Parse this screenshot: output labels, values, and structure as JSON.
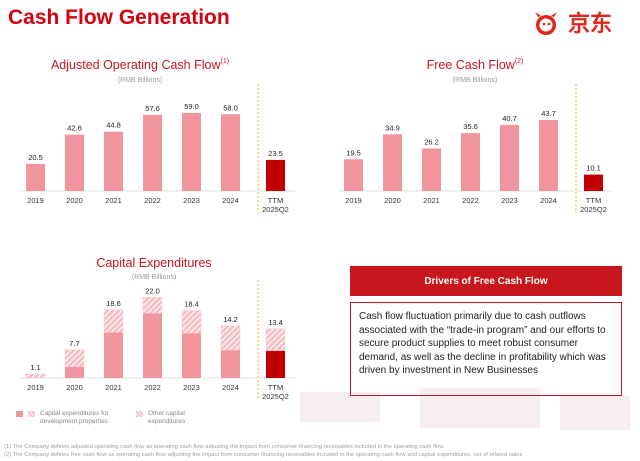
{
  "page": {
    "title": "Cash Flow Generation",
    "logo_text": "京东",
    "logo_icon": "jd-dog-mascot-icon",
    "unit_label": "(RMB Billions)",
    "colors": {
      "brand": "#c8161d",
      "bar_pink": "#f0959e",
      "bar_ttm": "#c00000",
      "divider": "#f2b51a"
    }
  },
  "chart_data": [
    {
      "type": "bar",
      "title": "Adjusted Operating Cash Flow",
      "footnote_marker": "(1)",
      "subtitle": "(RMB Billions)",
      "categories": [
        "2019",
        "2020",
        "2021",
        "2022",
        "2023",
        "2024",
        "TTM 2025Q2"
      ],
      "values": [
        20.5,
        42.6,
        44.8,
        57.6,
        59.0,
        58.0,
        23.5
      ],
      "value_labels": [
        "20.5",
        "42.6",
        "44.8",
        "57.6",
        "59.0",
        "58.0",
        "23.5"
      ],
      "highlight_last": true,
      "ylim": [
        0,
        65
      ]
    },
    {
      "type": "bar",
      "title": "Free Cash Flow",
      "footnote_marker": "(2)",
      "subtitle": "(RMB Billions)",
      "categories": [
        "2019",
        "2020",
        "2021",
        "2022",
        "2023",
        "2024",
        "TTM 2025Q2"
      ],
      "values": [
        19.5,
        34.9,
        26.2,
        35.6,
        40.7,
        43.7,
        10.1
      ],
      "value_labels": [
        "19.5",
        "34.9",
        "26.2",
        "35.6",
        "40.7",
        "43.7",
        "10.1"
      ],
      "highlight_last": true,
      "ylim": [
        0,
        48
      ]
    },
    {
      "type": "bar",
      "stacked": true,
      "title": "Capital Expenditures",
      "subtitle": "(RMB Billions)",
      "categories": [
        "2019",
        "2020",
        "2021",
        "2022",
        "2023",
        "2024",
        "TTM 2025Q2"
      ],
      "totals": [
        1.1,
        7.7,
        18.6,
        22.0,
        18.4,
        14.2,
        13.4
      ],
      "total_labels": [
        "1.1",
        "7.7",
        "18.6",
        "22.0",
        "18.4",
        "14.2",
        "13.4"
      ],
      "series": [
        {
          "name": "Capital expenditures for development properties",
          "values": [
            0.0,
            3.0,
            12.4,
            17.6,
            12.2,
            7.6,
            7.4
          ]
        },
        {
          "name": "Other capital expenditures",
          "values": [
            1.1,
            4.7,
            6.2,
            4.4,
            6.2,
            6.6,
            6.0
          ]
        }
      ],
      "legend": [
        "Capital expenditures for development properties",
        "Other capital expenditures"
      ],
      "ylim": [
        0,
        24
      ]
    }
  ],
  "drivers": {
    "heading": "Drivers of Free Cash Flow",
    "text": "Cash flow fluctuation primarily due to cash outflows associated with the “trade-in program” and our efforts to secure product supplies to meet robust consumer demand, as well as the decline in profitability which was driven by investment in New Businesses"
  },
  "footnotes": [
    "(1)    The Company defines adjusted operating cash flow as operating cash flow adjusting the impact from consumer financing receivables included in the operating cash flow.",
    "(2)    The Company defines free cash flow as operating cash flow adjusting the impact from consumer financing receivables included in the operating cash flow and capital expenditures, net of related sales"
  ]
}
